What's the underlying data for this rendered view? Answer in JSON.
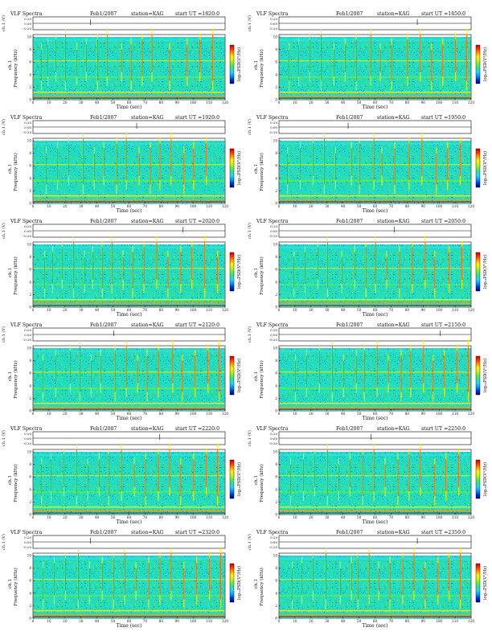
{
  "colors": {
    "scale": [
      "#000080",
      "#0033cc",
      "#0099ff",
      "#33ccff",
      "#33dd99",
      "#66ee44",
      "#ccee22",
      "#ffee00",
      "#ff9900",
      "#ff3300",
      "#cc0000"
    ],
    "background_level": "#1fe0b0",
    "axis": "#000000"
  },
  "chart_data": [
    {
      "type": "heatmap",
      "title_left": "VLF Spectra",
      "date": "Feb1/2007",
      "station": "station=KAG",
      "start_ut": "start  UT  =1820:0",
      "ylabel_top": "ch.1 (V)",
      "ylabel": "Frequency  (kHz)",
      "channel": "ch.1",
      "xlabel": "Time  (sec)",
      "colorbar_label": "log₁₀PSD(V²/Hz)",
      "xlim": [
        0,
        120
      ],
      "ylim": [
        0,
        10
      ],
      "xticks": [
        "0",
        "10",
        "20",
        "30",
        "40",
        "50",
        "60",
        "70",
        "80",
        "90",
        "100",
        "110",
        "120"
      ],
      "yticks": [
        "0",
        "2",
        "4",
        "6",
        "8",
        "10"
      ],
      "top_ticks": [
        "0.20",
        "0.00",
        "-0.20"
      ],
      "bursts": [
        5,
        9,
        14,
        20,
        27,
        33,
        40,
        46,
        55,
        61,
        68,
        74,
        85,
        96,
        104,
        112
      ]
    },
    {
      "type": "heatmap",
      "title_left": "VLF Spectra",
      "date": "Feb1/2007",
      "station": "station=KAG",
      "start_ut": "start  UT  =1850:0",
      "ylabel_top": "ch.1 (V)",
      "ylabel": "Frequency  (kHz)",
      "channel": "ch.1",
      "xlabel": "Time  (sec)",
      "colorbar_label": "log₁₀PSD(V²/Hz)",
      "xlim": [
        0,
        120
      ],
      "ylim": [
        0,
        10
      ],
      "xticks": [
        "0",
        "10",
        "20",
        "30",
        "40",
        "50",
        "60",
        "70",
        "80",
        "90",
        "100",
        "110",
        "120"
      ],
      "yticks": [
        "0",
        "2",
        "4",
        "6",
        "8",
        "10"
      ],
      "top_ticks": [
        "0.20",
        "0.00",
        "-0.20"
      ],
      "bursts": [
        6,
        12,
        19,
        26,
        34,
        41,
        48,
        57,
        63,
        70,
        80,
        88,
        95,
        102,
        110,
        117
      ]
    },
    {
      "type": "heatmap",
      "title_left": "VLF Spectra",
      "date": "Feb1/2007",
      "station": "station=KAG",
      "start_ut": "start  UT  =1920:0",
      "ylabel_top": "ch.1 (V)",
      "ylabel": "Frequency  (kHz)",
      "channel": "ch.1",
      "xlabel": "Time  (sec)",
      "colorbar_label": "log₁₀PSD(V²/Hz)",
      "xlim": [
        0,
        120
      ],
      "ylim": [
        0,
        10
      ],
      "xticks": [
        "0",
        "10",
        "20",
        "30",
        "40",
        "50",
        "60",
        "70",
        "80",
        "90",
        "100",
        "110",
        "120"
      ],
      "yticks": [
        "0",
        "2",
        "4",
        "6",
        "8",
        "10"
      ],
      "top_ticks": [
        "0.20",
        "0.00",
        "-0.20"
      ],
      "bursts": [
        8,
        15,
        22,
        31,
        38,
        44,
        52,
        58,
        66,
        73,
        79,
        86,
        94,
        100,
        108
      ]
    },
    {
      "type": "heatmap",
      "title_left": "VLF Spectra",
      "date": "Feb1/2007",
      "station": "station=KAG",
      "start_ut": "start  UT  =1950:0",
      "ylabel_top": "ch.1 (V)",
      "ylabel": "Frequency  (kHz)",
      "channel": "ch.1",
      "xlabel": "Time  (sec)",
      "colorbar_label": "log₁₀PSD(V²/Hz)",
      "xlim": [
        0,
        120
      ],
      "ylim": [
        0,
        10
      ],
      "xticks": [
        "0",
        "10",
        "20",
        "30",
        "40",
        "50",
        "60",
        "70",
        "80",
        "90",
        "100",
        "110",
        "120"
      ],
      "yticks": [
        "0",
        "2",
        "4",
        "6",
        "8",
        "10"
      ],
      "top_ticks": [
        "0.20",
        "0.00",
        "-0.20"
      ],
      "bursts": [
        5,
        13,
        21,
        28,
        35,
        45,
        50,
        59,
        64,
        72,
        81,
        89,
        98,
        105,
        113
      ]
    },
    {
      "type": "heatmap",
      "title_left": "VLF Spectra",
      "date": "Feb1/2007",
      "station": "station=KAG",
      "start_ut": "start  UT  =2020:0",
      "ylabel_top": "ch.1 (V)",
      "ylabel": "Frequency  (kHz)",
      "channel": "ch.1",
      "xlabel": "Time  (sec)",
      "colorbar_label": "log₁₀PSD(V²/Hz)",
      "xlim": [
        0,
        120
      ],
      "ylim": [
        0,
        10
      ],
      "xticks": [
        "0",
        "10",
        "20",
        "30",
        "40",
        "50",
        "60",
        "70",
        "80",
        "90",
        "100",
        "110",
        "120"
      ],
      "yticks": [
        "0",
        "2",
        "4",
        "6",
        "8",
        "10"
      ],
      "top_ticks": [
        "0.20",
        "0.00",
        "-0.20"
      ],
      "bursts": [
        7,
        12,
        18,
        25,
        32,
        37,
        43,
        49,
        56,
        62,
        69,
        77,
        84,
        92,
        99,
        107,
        115
      ]
    },
    {
      "type": "heatmap",
      "title_left": "VLF Spectra",
      "date": "Feb1/2007",
      "station": "station=KAG",
      "start_ut": "start  UT  =2050:0",
      "ylabel_top": "ch.1 (V)",
      "ylabel": "Frequency  (kHz)",
      "channel": "ch.1",
      "xlabel": "Time  (sec)",
      "colorbar_label": "log₁₀PSD(V²/Hz)",
      "xlim": [
        0,
        120
      ],
      "ylim": [
        0,
        10
      ],
      "xticks": [
        "0",
        "10",
        "20",
        "30",
        "40",
        "50",
        "60",
        "70",
        "80",
        "90",
        "100",
        "110",
        "120"
      ],
      "yticks": [
        "0",
        "2",
        "4",
        "6",
        "8",
        "10"
      ],
      "top_ticks": [
        "0.20",
        "0.00",
        "-0.20"
      ],
      "bursts": [
        9,
        16,
        24,
        30,
        39,
        47,
        54,
        60,
        67,
        75,
        83,
        91,
        97,
        106,
        114
      ]
    },
    {
      "type": "heatmap",
      "title_left": "VLF Spectra",
      "date": "Feb1/2007",
      "station": "station=KAG",
      "start_ut": "start  UT  =2120:0",
      "ylabel_top": "ch.1 (V)",
      "ylabel": "Frequency  (kHz)",
      "channel": "ch.1",
      "xlabel": "Time  (sec)",
      "colorbar_label": "log₁₀PSD(V²/Hz)",
      "xlim": [
        0,
        120
      ],
      "ylim": [
        0,
        10
      ],
      "xticks": [
        "0",
        "10",
        "20",
        "30",
        "40",
        "50",
        "60",
        "70",
        "80",
        "90",
        "100",
        "110",
        "120"
      ],
      "yticks": [
        "0",
        "2",
        "4",
        "6",
        "8",
        "10"
      ],
      "top_ticks": [
        "0.20",
        "0.00",
        "-0.20"
      ],
      "bursts": [
        6,
        14,
        23,
        29,
        36,
        42,
        51,
        58,
        65,
        71,
        78,
        87,
        93,
        101,
        109,
        116
      ]
    },
    {
      "type": "heatmap",
      "title_left": "VLF Spectra",
      "date": "Feb1/2007",
      "station": "station=KAG",
      "start_ut": "start  UT  =2150:0",
      "ylabel_top": "ch.1 (V)",
      "ylabel": "Frequency  (kHz)",
      "channel": "ch.1",
      "xlabel": "Time  (sec)",
      "colorbar_label": "log₁₀PSD(V²/Hz)",
      "xlim": [
        0,
        120
      ],
      "ylim": [
        0,
        10
      ],
      "xticks": [
        "0",
        "10",
        "20",
        "30",
        "40",
        "50",
        "60",
        "70",
        "80",
        "90",
        "100",
        "110",
        "120"
      ],
      "yticks": [
        "0",
        "2",
        "4",
        "6",
        "8",
        "10"
      ],
      "top_ticks": [
        "0.20",
        "0.00",
        "-0.20"
      ],
      "bursts": [
        10,
        17,
        25,
        33,
        40,
        48,
        53,
        61,
        68,
        76,
        82,
        90,
        96,
        103,
        111,
        118
      ]
    },
    {
      "type": "heatmap",
      "title_left": "VLF Spectra",
      "date": "Feb1/2007",
      "station": "station=KAG",
      "start_ut": "start  UT  =2220:0",
      "ylabel_top": "ch.1 (V)",
      "ylabel": "Frequency  (kHz)",
      "channel": "ch.1",
      "xlabel": "Time  (sec)",
      "colorbar_label": "log₁₀PSD(V²/Hz)",
      "xlim": [
        0,
        120
      ],
      "ylim": [
        0,
        10
      ],
      "xticks": [
        "0",
        "10",
        "20",
        "30",
        "40",
        "50",
        "60",
        "70",
        "80",
        "90",
        "100",
        "110",
        "120"
      ],
      "yticks": [
        "0",
        "2",
        "4",
        "6",
        "8",
        "10"
      ],
      "top_ticks": [
        "0.20",
        "0.00",
        "-0.20"
      ],
      "bursts": [
        5,
        11,
        19,
        27,
        34,
        41,
        47,
        55,
        63,
        70,
        78,
        85,
        92,
        100,
        108,
        115
      ]
    },
    {
      "type": "heatmap",
      "title_left": "VLF Spectra",
      "date": "Feb1/2007",
      "station": "station=KAG",
      "start_ut": "start  UT  =2250:0",
      "ylabel_top": "ch.1 (V)",
      "ylabel": "Frequency  (kHz)",
      "channel": "ch.1",
      "xlabel": "Time  (sec)",
      "colorbar_label": "log₁₀PSD(V²/Hz)",
      "xlim": [
        0,
        120
      ],
      "ylim": [
        0,
        10
      ],
      "xticks": [
        "0",
        "10",
        "20",
        "30",
        "40",
        "50",
        "60",
        "70",
        "80",
        "90",
        "100",
        "110",
        "120"
      ],
      "yticks": [
        "0",
        "2",
        "4",
        "6",
        "8",
        "10"
      ],
      "top_ticks": [
        "0.20",
        "0.00",
        "-0.20"
      ],
      "bursts": [
        7,
        15,
        22,
        30,
        37,
        44,
        52,
        59,
        66,
        74,
        81,
        88,
        97,
        104,
        112
      ]
    },
    {
      "type": "heatmap",
      "title_left": "VLF Spectra",
      "date": "Feb1/2007",
      "station": "station=KAG",
      "start_ut": "start  UT  =2320:0",
      "ylabel_top": "ch.1 (V)",
      "ylabel": "Frequency  (kHz)",
      "channel": "ch.1",
      "xlabel": "Time  (sec)",
      "colorbar_label": "log₁₀PSD(V²/Hz)",
      "xlim": [
        0,
        120
      ],
      "ylim": [
        0,
        10
      ],
      "xticks": [
        "0",
        "10",
        "20",
        "30",
        "40",
        "50",
        "60",
        "70",
        "80",
        "90",
        "100",
        "110",
        "120"
      ],
      "yticks": [
        "0",
        "2",
        "4",
        "6",
        "8",
        "10"
      ],
      "top_ticks": [
        "0.20",
        "0.00",
        "-0.20"
      ],
      "bursts": [
        6,
        13,
        20,
        28,
        35,
        43,
        50,
        57,
        64,
        72,
        79,
        86,
        94,
        102,
        110,
        117
      ]
    },
    {
      "type": "heatmap",
      "title_left": "VLF Spectra",
      "date": "Feb1/2007",
      "station": "station=KAG",
      "start_ut": "start  UT  =2350:0",
      "ylabel_top": "ch.1 (V)",
      "ylabel": "Frequency  (kHz)",
      "channel": "ch.1",
      "xlabel": "Time  (sec)",
      "colorbar_label": "log₁₀PSD(V²/Hz)",
      "xlim": [
        0,
        120
      ],
      "ylim": [
        0,
        10
      ],
      "xticks": [
        "0",
        "10",
        "20",
        "30",
        "40",
        "50",
        "60",
        "70",
        "80",
        "90",
        "100",
        "110",
        "120"
      ],
      "yticks": [
        "0",
        "2",
        "4",
        "6",
        "8",
        "10"
      ],
      "top_ticks": [
        "0.20",
        "0.00",
        "-0.20"
      ],
      "bursts": [
        8,
        14,
        21,
        29,
        38,
        45,
        49,
        56,
        62,
        69,
        77,
        84,
        91,
        99,
        106,
        113
      ]
    }
  ]
}
